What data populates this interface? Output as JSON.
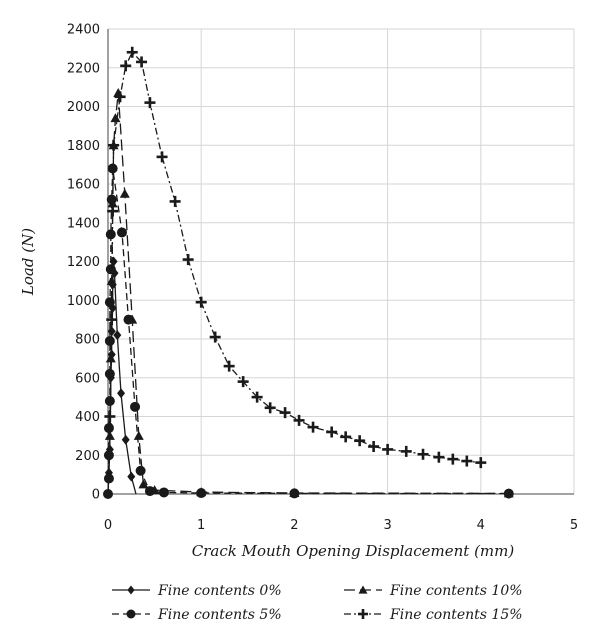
{
  "chart_data": {
    "type": "line",
    "title": "",
    "xlabel": "Crack Mouth Opening Displacement (mm)",
    "ylabel": "Load (N)",
    "xlim": [
      0,
      5
    ],
    "ylim": [
      0,
      2400
    ],
    "xticks": [
      0,
      1,
      2,
      3,
      4,
      5
    ],
    "yticks": [
      0,
      200,
      400,
      600,
      800,
      1000,
      1200,
      1400,
      1600,
      1800,
      2000,
      2200,
      2400
    ],
    "grid": true,
    "legend_position": "bottom",
    "series": [
      {
        "name": "Fine contents 0%",
        "marker": "diamond",
        "dash": "solid",
        "points": [
          [
            0,
            0
          ],
          [
            0.01,
            110
          ],
          [
            0.02,
            230
          ],
          [
            0.02,
            350
          ],
          [
            0.03,
            480
          ],
          [
            0.03,
            600
          ],
          [
            0.04,
            720
          ],
          [
            0.04,
            840
          ],
          [
            0.05,
            960
          ],
          [
            0.05,
            1080
          ],
          [
            0.06,
            1200
          ],
          [
            0.07,
            1140
          ],
          [
            0.1,
            820
          ],
          [
            0.14,
            520
          ],
          [
            0.19,
            280
          ],
          [
            0.25,
            90
          ],
          [
            0.3,
            0
          ]
        ]
      },
      {
        "name": "Fine contents 5%",
        "marker": "circle",
        "dash": "dash",
        "points": [
          [
            0,
            0
          ],
          [
            0.01,
            80
          ],
          [
            0.01,
            200
          ],
          [
            0.01,
            340
          ],
          [
            0.02,
            480
          ],
          [
            0.02,
            620
          ],
          [
            0.02,
            790
          ],
          [
            0.02,
            990
          ],
          [
            0.03,
            1160
          ],
          [
            0.03,
            1340
          ],
          [
            0.04,
            1520
          ],
          [
            0.05,
            1680
          ],
          [
            0.15,
            1350
          ],
          [
            0.22,
            900
          ],
          [
            0.29,
            450
          ],
          [
            0.35,
            120
          ],
          [
            0.45,
            15
          ],
          [
            0.6,
            8
          ],
          [
            1.0,
            5
          ],
          [
            2.0,
            3
          ],
          [
            4.3,
            2
          ]
        ]
      },
      {
        "name": "Fine contents 10%",
        "marker": "triangle",
        "dash": "longdash",
        "points": [
          [
            0,
            0
          ],
          [
            0.02,
            300
          ],
          [
            0.03,
            700
          ],
          [
            0.04,
            1100
          ],
          [
            0.05,
            1500
          ],
          [
            0.06,
            1800
          ],
          [
            0.08,
            1940
          ],
          [
            0.11,
            2070
          ],
          [
            0.18,
            1550
          ],
          [
            0.26,
            900
          ],
          [
            0.33,
            300
          ],
          [
            0.38,
            50
          ],
          [
            0.5,
            20
          ],
          [
            1.0,
            10
          ],
          [
            2.0,
            5
          ],
          [
            4.3,
            3
          ]
        ]
      },
      {
        "name": "Fine contents 15%",
        "marker": "plus",
        "dash": "dashdot",
        "points": [
          [
            0,
            0
          ],
          [
            0.02,
            400
          ],
          [
            0.04,
            900
          ],
          [
            0.05,
            1460
          ],
          [
            0.06,
            1800
          ],
          [
            0.13,
            2050
          ],
          [
            0.19,
            2210
          ],
          [
            0.26,
            2280
          ],
          [
            0.36,
            2230
          ],
          [
            0.45,
            2020
          ],
          [
            0.58,
            1740
          ],
          [
            0.72,
            1510
          ],
          [
            0.86,
            1210
          ],
          [
            1.0,
            990
          ],
          [
            1.15,
            810
          ],
          [
            1.3,
            660
          ],
          [
            1.45,
            580
          ],
          [
            1.6,
            500
          ],
          [
            1.74,
            445
          ],
          [
            1.9,
            420
          ],
          [
            2.05,
            380
          ],
          [
            2.2,
            345
          ],
          [
            2.4,
            320
          ],
          [
            2.55,
            295
          ],
          [
            2.7,
            275
          ],
          [
            2.85,
            245
          ],
          [
            3.0,
            230
          ],
          [
            3.2,
            220
          ],
          [
            3.38,
            205
          ],
          [
            3.55,
            190
          ],
          [
            3.7,
            180
          ],
          [
            3.85,
            170
          ],
          [
            4.0,
            162
          ]
        ]
      }
    ]
  }
}
